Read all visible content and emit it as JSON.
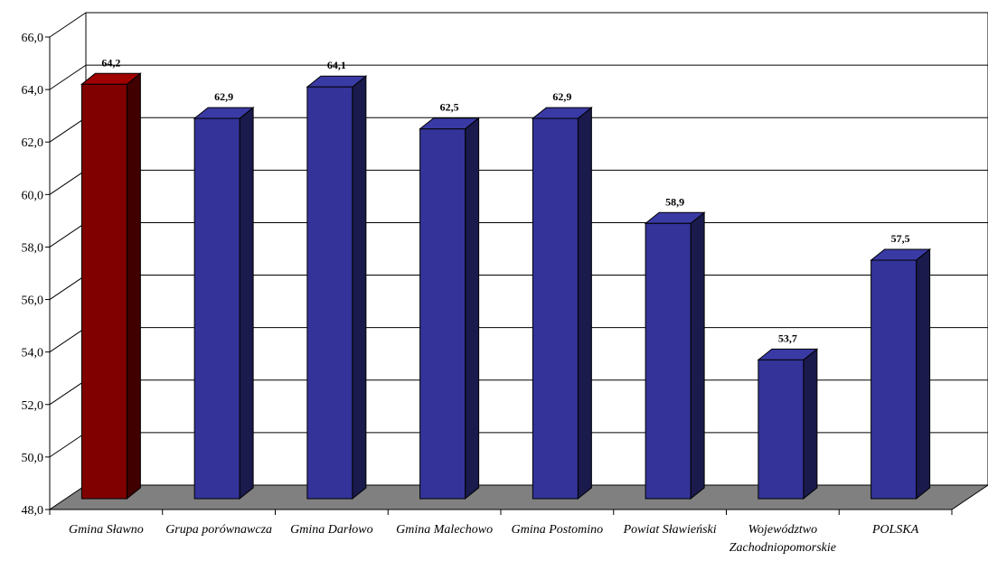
{
  "chart_data": {
    "type": "bar",
    "categories": [
      "Gmina Sławno",
      "Grupa porównawcza",
      "Gmina Darłowo",
      "Gmina Malechowo",
      "Gmina Postomino",
      "Powiat Sławieński",
      "Województwo Zachodniopomorskie",
      "POLSKA"
    ],
    "category_lines": [
      [
        "Gmina Sławno"
      ],
      [
        "Grupa porównawcza"
      ],
      [
        "Gmina Darłowo"
      ],
      [
        "Gmina Malechowo"
      ],
      [
        "Gmina Postomino"
      ],
      [
        "Powiat Sławieński"
      ],
      [
        "Województwo",
        "Zachodniopomorskie"
      ],
      [
        "POLSKA"
      ]
    ],
    "values": [
      64.2,
      62.9,
      64.1,
      62.5,
      62.9,
      58.9,
      53.7,
      57.5
    ],
    "value_labels": [
      "64,2",
      "62,9",
      "64,1",
      "62,5",
      "62,9",
      "58,9",
      "53,7",
      "57,5"
    ],
    "ylim": [
      48,
      66
    ],
    "yticks": [
      "48,0",
      "50,0",
      "52,0",
      "54,0",
      "56,0",
      "58,0",
      "60,0",
      "62,0",
      "64,0",
      "66,0"
    ],
    "grid": true,
    "style": "3d",
    "colors": {
      "highlight_front": "#800000",
      "highlight_side": "#400000",
      "highlight_top": "#A00000",
      "bar_front": "#333399",
      "bar_side": "#1A1A4D",
      "bar_top": "#3A3AA5",
      "floor": "#808080",
      "grid": "#000000"
    }
  }
}
